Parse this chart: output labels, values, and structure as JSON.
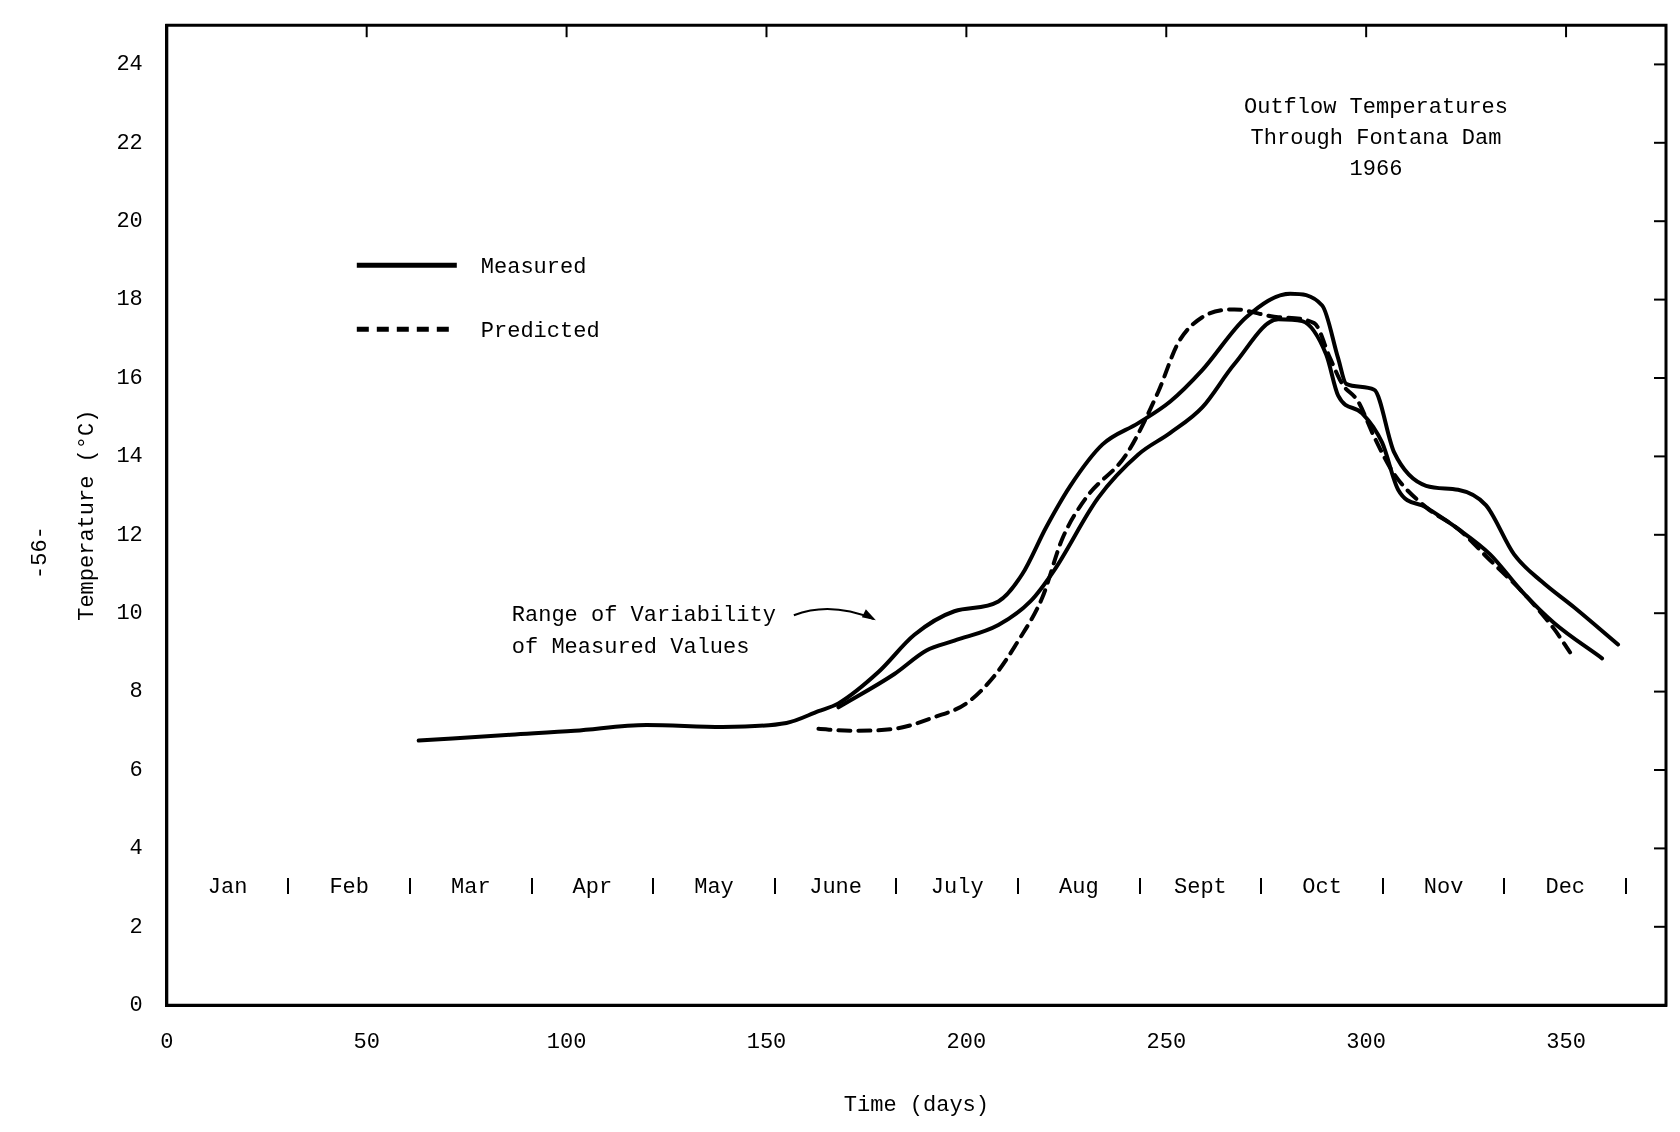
{
  "chart_data": {
    "type": "line",
    "title": "Outflow Temperatures\nThrough Fontana Dam\n1966",
    "xlabel": "Time (days)",
    "ylabel": "Temperature (°C)",
    "xlim": [
      0,
      375
    ],
    "xticks": [
      0,
      50,
      100,
      150,
      200,
      250,
      300,
      350
    ],
    "ylim": [
      0,
      25
    ],
    "yticks": [
      0,
      2,
      4,
      6,
      8,
      10,
      12,
      14,
      16,
      18,
      20,
      22,
      24
    ],
    "grid": false,
    "legend": "top left",
    "marker": "none",
    "series": [
      {
        "name": "Measured",
        "color": "#000000",
        "line_style": "solid",
        "x": [
          63,
          86,
          102,
          120,
          139,
          155,
          163,
          168,
          178,
          187,
          197,
          208,
          214,
          220,
          226,
          234,
          243,
          251,
          259,
          270,
          281,
          289,
          293,
          295,
          302,
          307,
          315,
          323,
          330,
          337,
          344,
          352,
          363
        ],
        "values": [
          6.75,
          6.9,
          7.0,
          7.15,
          7.1,
          7.2,
          7.5,
          7.7,
          8.5,
          9.45,
          10.05,
          10.3,
          11.0,
          12.2,
          13.25,
          14.3,
          14.85,
          15.4,
          16.2,
          17.55,
          18.15,
          17.85,
          16.5,
          15.85,
          15.7,
          14.1,
          13.25,
          13.15,
          12.75,
          11.5,
          10.8,
          10.15,
          9.2
        ]
      },
      {
        "color": "#000000",
        "line_style": "solid",
        "x": [
          168,
          182,
          190,
          197,
          208,
          216,
          222,
          233,
          243,
          251,
          259,
          267,
          278,
          284,
          290,
          293,
          299,
          304,
          308,
          315,
          323,
          331,
          339,
          347,
          359
        ],
        "values": [
          7.6,
          8.45,
          9.05,
          9.3,
          9.7,
          10.3,
          11.1,
          12.95,
          14.05,
          14.6,
          15.25,
          16.35,
          17.5,
          17.45,
          16.6,
          15.55,
          15.1,
          14.35,
          13.15,
          12.7,
          12.15,
          11.5,
          10.55,
          9.75,
          8.85
        ]
      },
      {
        "name": "Predicted",
        "color": "#000000",
        "line_style": "dashed",
        "x": [
          163,
          171,
          182,
          192,
          200,
          207,
          213,
          219,
          224,
          230,
          240,
          248,
          253,
          259,
          267,
          278,
          287,
          291,
          294,
          298,
          302,
          307,
          315,
          323,
          331,
          339,
          347,
          351
        ],
        "values": [
          7.05,
          7.0,
          7.05,
          7.35,
          7.7,
          8.4,
          9.3,
          10.4,
          11.9,
          12.95,
          14.05,
          15.65,
          16.9,
          17.55,
          17.75,
          17.55,
          17.4,
          16.5,
          15.85,
          15.4,
          14.5,
          13.55,
          12.7,
          12.15,
          11.35,
          10.55,
          9.6,
          9.0
        ]
      }
    ],
    "annotations": [
      "-56-",
      "Range of Variability\nof Measured Values",
      "Jan",
      "Feb",
      "Mar",
      "Apr",
      "May",
      "June",
      "July",
      "Aug",
      "Sept",
      "Oct",
      "Nov",
      "Dec"
    ]
  }
}
